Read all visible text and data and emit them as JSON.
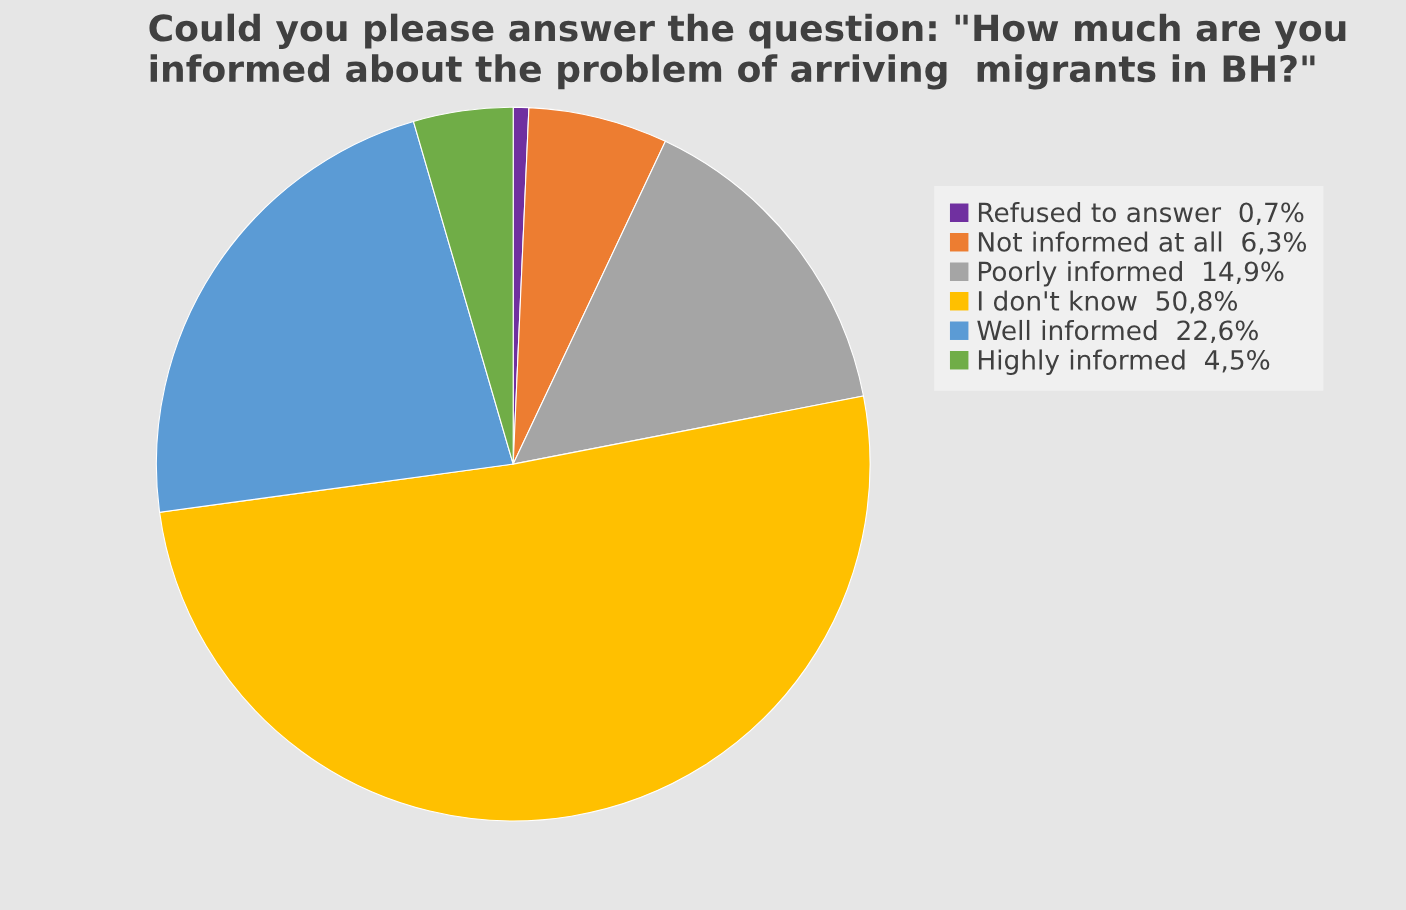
{
  "chart_data": {
    "type": "pie",
    "title": "Could you please answer the question: \"How much are you informed about the problem of arriving  migrants in BH?\"",
    "categories": [
      "Refused to answer",
      "Not informed at all",
      "Poorly informed",
      "I don't know",
      "Well informed",
      "Highly informed"
    ],
    "values": [
      0.7,
      6.3,
      14.9,
      50.8,
      22.6,
      4.5
    ],
    "value_labels": [
      "0,7%",
      "6,3%",
      "14,9%",
      "50,8%",
      "22,6%",
      "4,5%"
    ],
    "colors": [
      "#7030a0",
      "#ed7d31",
      "#a5a5a5",
      "#ffc000",
      "#5b9bd5",
      "#70ad47"
    ],
    "legend": "right"
  }
}
